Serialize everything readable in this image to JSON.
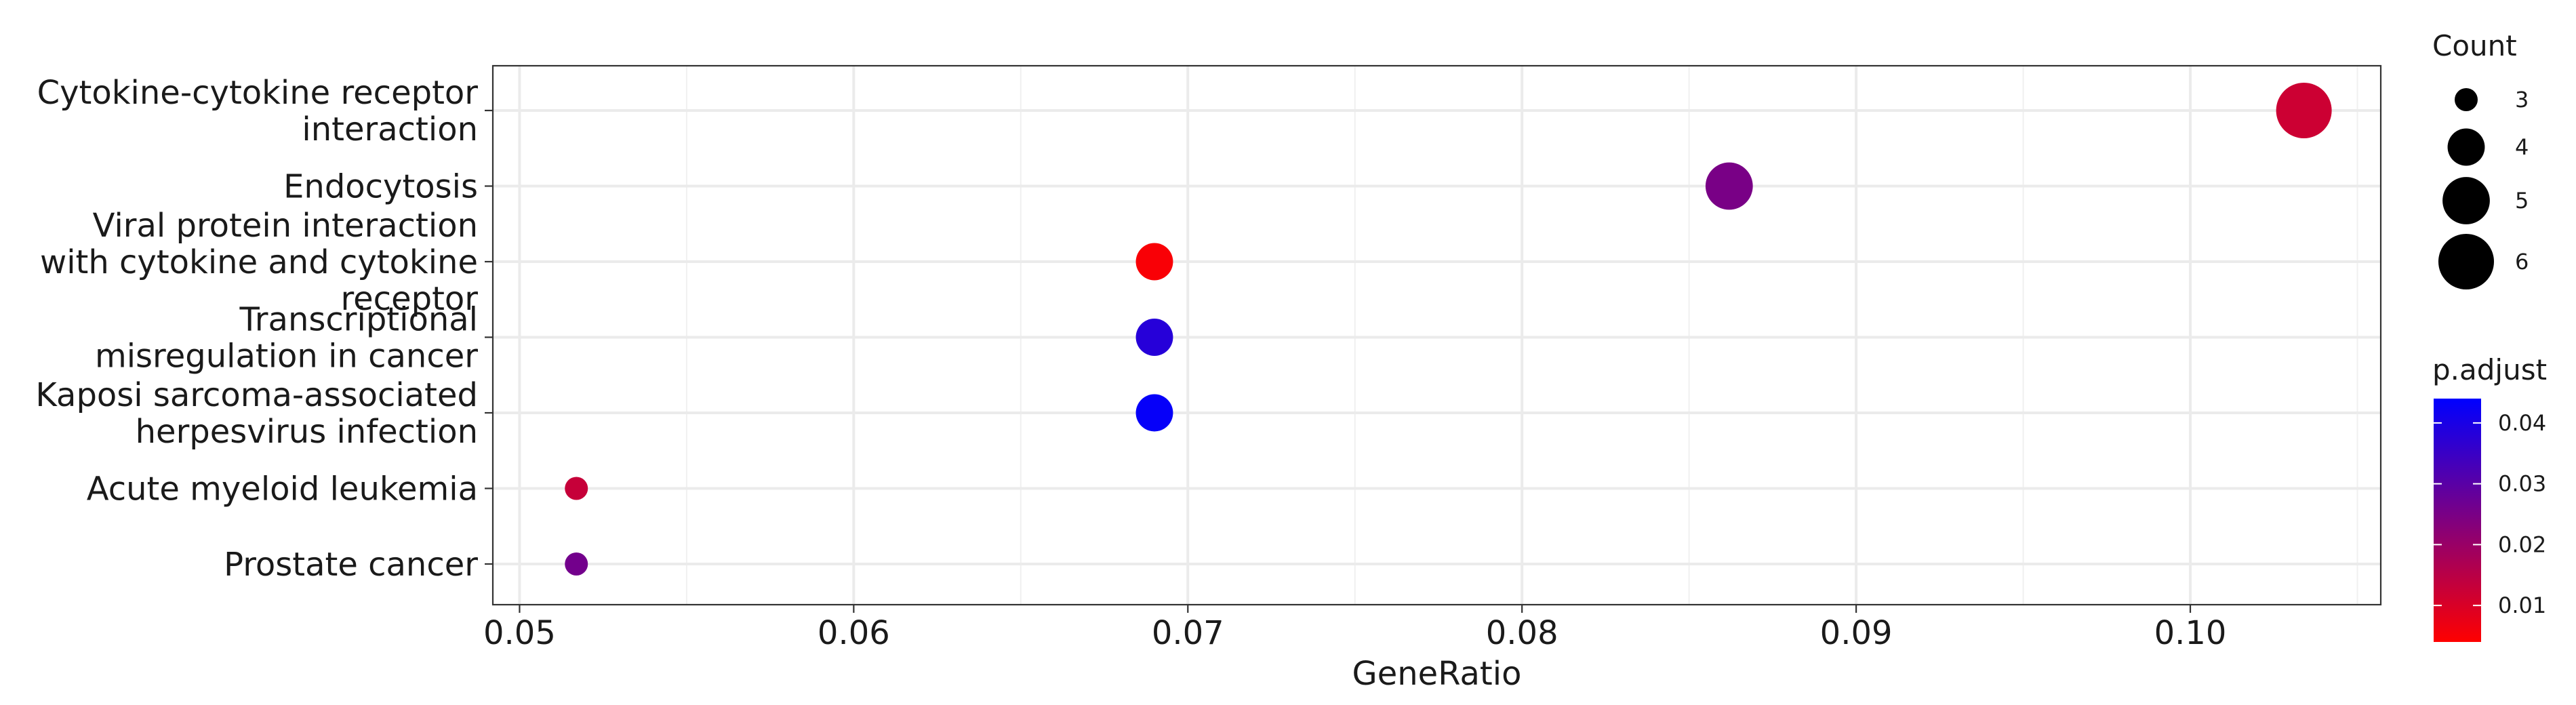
{
  "chart_data": {
    "type": "scatter",
    "xlabel": "GeneRatio",
    "ylabel": "",
    "xlim": [
      0.0492,
      0.1057
    ],
    "x_ticks": [
      0.05,
      0.06,
      0.07,
      0.08,
      0.09,
      0.1
    ],
    "x_tick_labels": [
      "0.05",
      "0.06",
      "0.07",
      "0.08",
      "0.09",
      "0.10"
    ],
    "grid": true,
    "categories": [
      "Cytokine-cytokine receptor interaction",
      "Endocytosis",
      "Viral protein interaction with cytokine and cytokine receptor",
      "Transcriptional misregulation in cancer",
      "Kaposi sarcoma-associated herpesvirus infection",
      "Acute myeloid leukemia",
      "Prostate cancer"
    ],
    "category_label_lines": [
      [
        "Cytokine-cytokine receptor",
        "interaction"
      ],
      [
        "Endocytosis"
      ],
      [
        "Viral protein interaction",
        "with cytokine and cytokine",
        "receptor"
      ],
      [
        "Transcriptional",
        "misregulation in cancer"
      ],
      [
        "Kaposi sarcoma-associated",
        "herpesvirus infection"
      ],
      [
        "Acute myeloid leukemia"
      ],
      [
        "Prostate cancer"
      ]
    ],
    "points": [
      {
        "category": "Cytokine-cytokine receptor interaction",
        "gene_ratio": 0.1034,
        "count": 6,
        "p_adjust": 0.012
      },
      {
        "category": "Endocytosis",
        "gene_ratio": 0.0862,
        "count": 5,
        "p_adjust": 0.025
      },
      {
        "category": "Viral protein interaction with cytokine and cytokine receptor",
        "gene_ratio": 0.069,
        "count": 4,
        "p_adjust": 0.005
      },
      {
        "category": "Transcriptional misregulation in cancer",
        "gene_ratio": 0.069,
        "count": 4,
        "p_adjust": 0.038
      },
      {
        "category": "Kaposi sarcoma-associated herpesvirus infection",
        "gene_ratio": 0.069,
        "count": 4,
        "p_adjust": 0.043
      },
      {
        "category": "Acute myeloid leukemia",
        "gene_ratio": 0.0517,
        "count": 3,
        "p_adjust": 0.013
      },
      {
        "category": "Prostate cancer",
        "gene_ratio": 0.0517,
        "count": 3,
        "p_adjust": 0.026
      }
    ],
    "size_legend": {
      "title": "Count",
      "entries": [
        3,
        4,
        5,
        6
      ],
      "labels": [
        "3",
        "4",
        "5",
        "6"
      ]
    },
    "color_legend": {
      "title": "p.adjust",
      "range": [
        0.004,
        0.044
      ],
      "low_color": "#ff0000",
      "high_color": "#0000ff",
      "ticks": [
        0.01,
        0.02,
        0.03,
        0.04
      ],
      "tick_labels": [
        "0.01",
        "0.02",
        "0.03",
        "0.04"
      ]
    }
  }
}
